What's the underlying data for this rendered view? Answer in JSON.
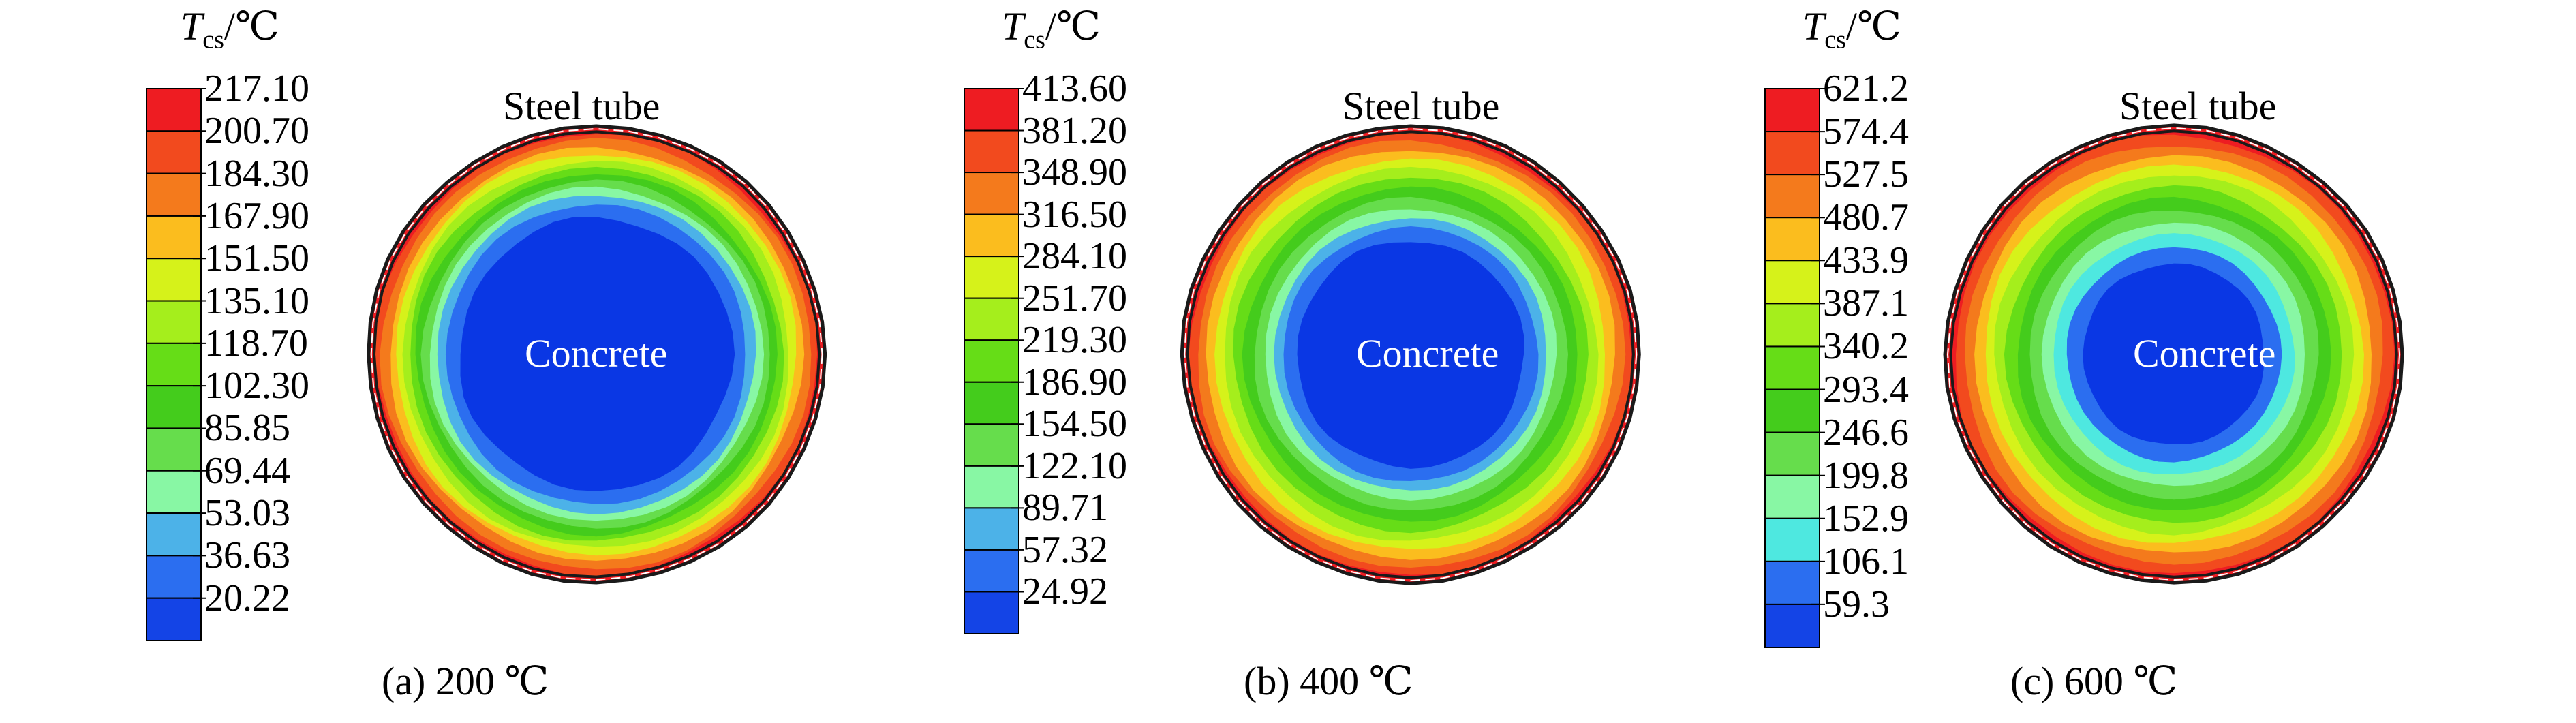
{
  "legend_title": {
    "symbol": "T",
    "subscript": "cs",
    "unit": "/℃"
  },
  "labels": {
    "steel": "Steel tube",
    "concrete": "Concrete"
  },
  "panels": [
    {
      "caption": "(a) 200 ℃",
      "ticks": [
        "217.10",
        "200.70",
        "184.30",
        "167.90",
        "151.50",
        "135.10",
        "118.70",
        "102.30",
        "85.85",
        "69.44",
        "53.03",
        "36.63",
        "20.22"
      ],
      "colors": [
        "#ee1c22",
        "#f24a1e",
        "#f47a1c",
        "#fbbd1e",
        "#d6f21a",
        "#a5ee1c",
        "#66dd17",
        "#44cc1c",
        "#66dd4c",
        "#88f7a4",
        "#4cb2e8",
        "#2b6ef0",
        "#1444e6"
      ],
      "core_color": "#0a37e4",
      "rings": [
        "#ee1c22",
        "#f24a1e",
        "#f47a1c",
        "#fbbd1e",
        "#d6f21a",
        "#a5ee1c",
        "#66dd17",
        "#44cc1c",
        "#66dd4c",
        "#88f7a4",
        "#4cb2e8",
        "#2b6ef0"
      ],
      "ring_radii": [
        1.0,
        0.965,
        0.94,
        0.905,
        0.88,
        0.85,
        0.82,
        0.79,
        0.76,
        0.73,
        0.7,
        0.66,
        0.6
      ]
    },
    {
      "caption": "(b) 400 ℃",
      "ticks": [
        "413.60",
        "381.20",
        "348.90",
        "316.50",
        "284.10",
        "251.70",
        "219.30",
        "186.90",
        "154.50",
        "122.10",
        "89.71",
        "57.32",
        "24.92"
      ],
      "colors": [
        "#ee1c22",
        "#f24a1e",
        "#f47a1c",
        "#fbbd1e",
        "#d6f21a",
        "#a5ee1c",
        "#66dd17",
        "#44cc1c",
        "#66dd4c",
        "#88f7a4",
        "#4cb2e8",
        "#2b6ef0",
        "#1444e6"
      ],
      "core_color": "#0a37e4",
      "rings": [
        "#ee1c22",
        "#f24a1e",
        "#f47a1c",
        "#fbbd1e",
        "#d6f21a",
        "#a5ee1c",
        "#66dd17",
        "#44cc1c",
        "#66dd4c",
        "#88f7a4",
        "#4cb2e8",
        "#2b6ef0"
      ],
      "ring_radii": [
        1.0,
        0.965,
        0.935,
        0.9,
        0.86,
        0.82,
        0.775,
        0.73,
        0.685,
        0.64,
        0.6,
        0.56,
        0.5
      ]
    },
    {
      "caption": "(c) 600 ℃",
      "ticks": [
        "621.2",
        "574.4",
        "527.5",
        "480.7",
        "433.9",
        "387.1",
        "340.2",
        "293.4",
        "246.6",
        "199.8",
        "152.9",
        "106.1",
        "59.3"
      ],
      "colors": [
        "#ee1c22",
        "#f24a1e",
        "#f47a1c",
        "#fbbd1e",
        "#d6f21a",
        "#a5ee1c",
        "#66dd17",
        "#44cc1c",
        "#66dd4c",
        "#88f7a4",
        "#4ee8e0",
        "#2b6ef0",
        "#1444e6"
      ],
      "core_color": "#0a37e4",
      "rings": [
        "#ee1c22",
        "#f24a1e",
        "#f47a1c",
        "#fbbd1e",
        "#d6f21a",
        "#a5ee1c",
        "#66dd17",
        "#44cc1c",
        "#66dd4c",
        "#88f7a4",
        "#4ee8e0",
        "#2b6ef0"
      ],
      "ring_radii": [
        1.0,
        0.96,
        0.92,
        0.875,
        0.83,
        0.785,
        0.735,
        0.685,
        0.635,
        0.58,
        0.53,
        0.47,
        0.4
      ]
    }
  ]
}
